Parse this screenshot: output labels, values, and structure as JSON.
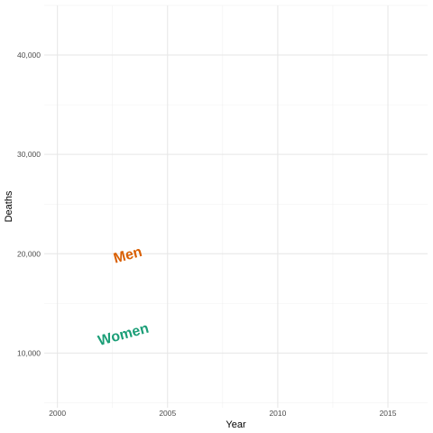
{
  "chart_data": {
    "type": "line",
    "title": "",
    "xlabel": "Year",
    "ylabel": "Deaths",
    "xlim": [
      1999.4,
      2016.8
    ],
    "ylim": [
      4500,
      45000
    ],
    "x_ticks": [
      2000,
      2005,
      2010,
      2015
    ],
    "x_tick_labels": [
      "2000",
      "2005",
      "2010",
      "2015"
    ],
    "y_ticks": [
      10000,
      20000,
      30000,
      40000
    ],
    "y_tick_labels": [
      "10,000",
      "20,000",
      "30,000",
      "40,000"
    ],
    "grid": true,
    "series": [
      {
        "name": "Men",
        "color": "#d95f02",
        "values": [],
        "label_position": {
          "x": 2003.2,
          "y": 19800
        },
        "label_angle": -15
      },
      {
        "name": "Women",
        "color": "#1b9e77",
        "values": [],
        "label_position": {
          "x": 2003.0,
          "y": 11800
        },
        "label_angle": -15
      }
    ]
  }
}
